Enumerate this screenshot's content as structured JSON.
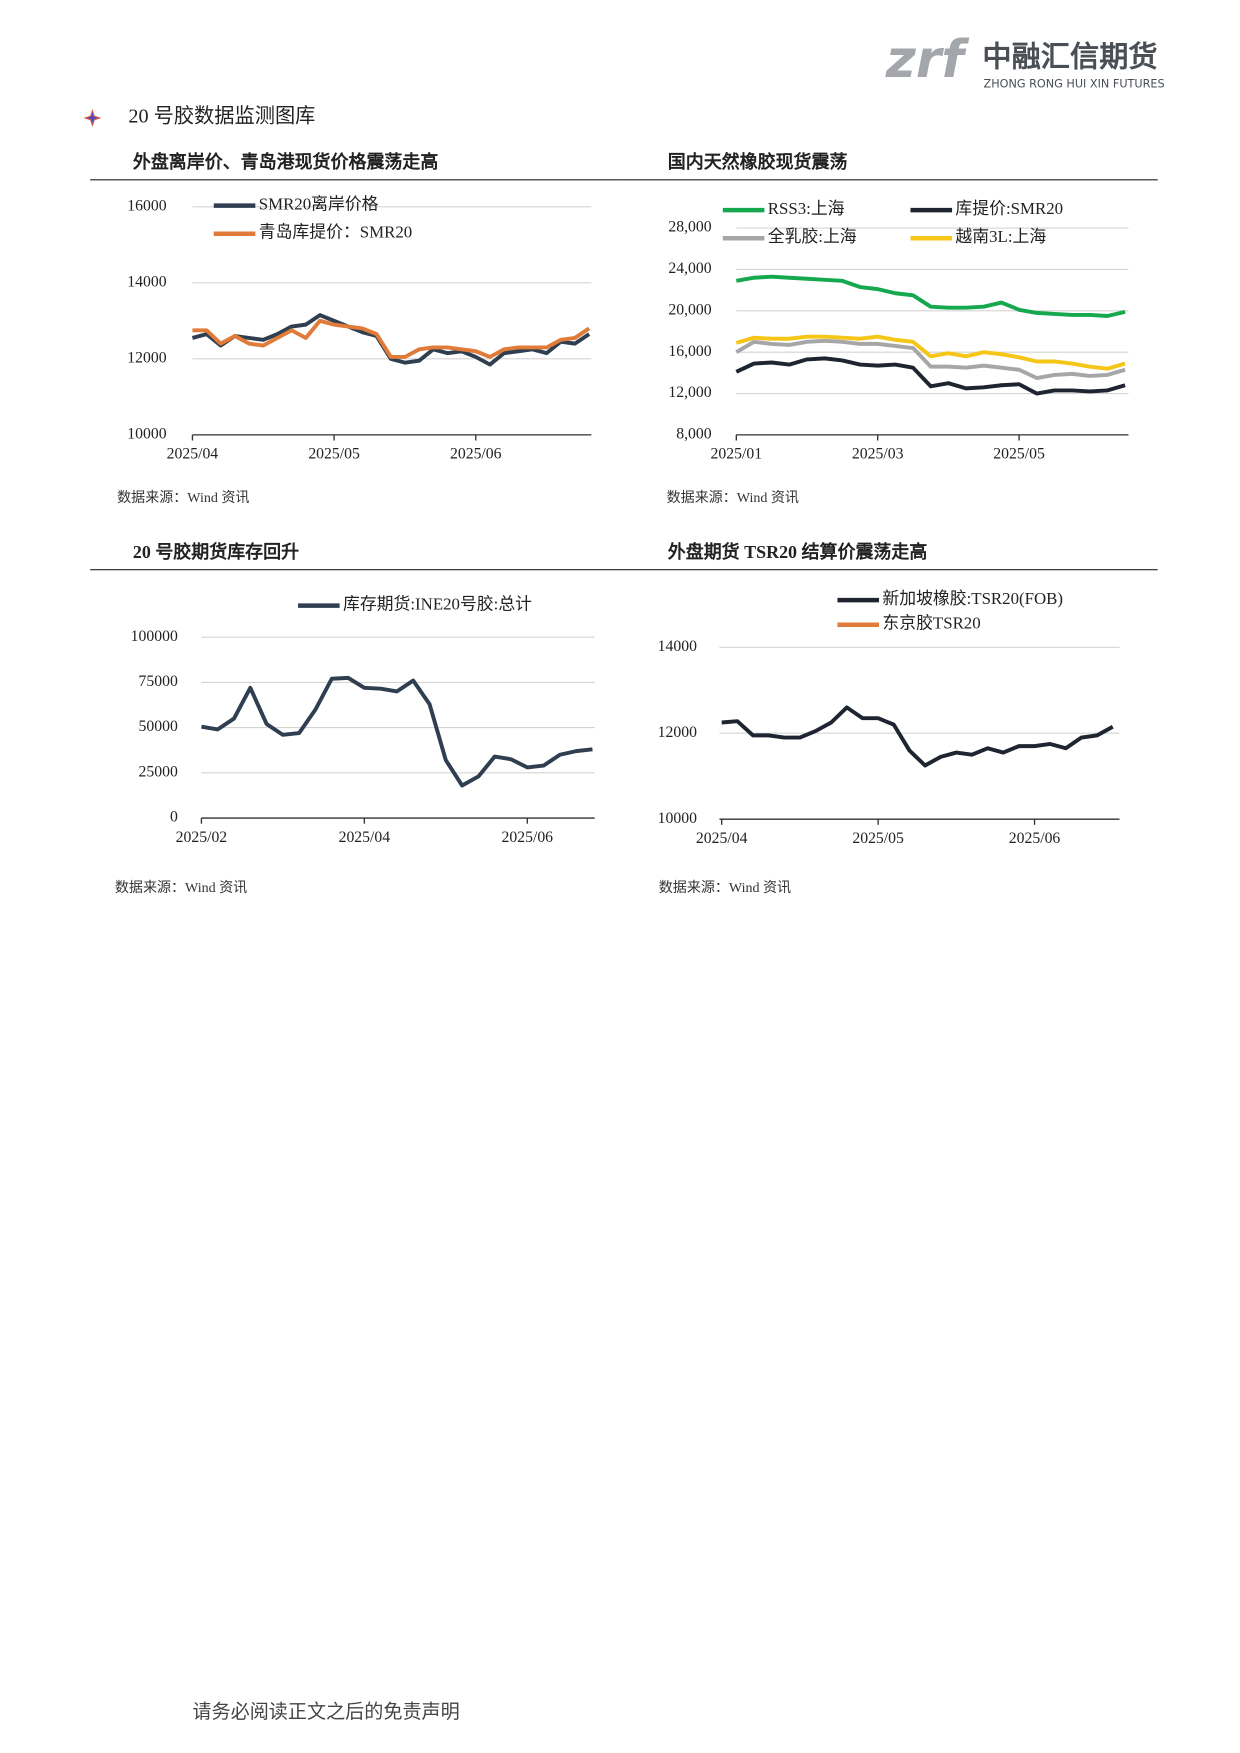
{
  "header": {
    "logo": "zrf",
    "company": "中融汇信期货",
    "company_en": "ZHONG RONG HUI XIN FUTURES"
  },
  "section_title": "20 号胶数据监测图库",
  "chart_data": [
    {
      "type": "line",
      "title": "外盘离岸价、青岛港现货价格震荡走高",
      "source": "数据来源：Wind 资讯",
      "grid": true,
      "categories": [
        "2025/04",
        null,
        null,
        null,
        null,
        null,
        null,
        null,
        null,
        null,
        "2025/05",
        null,
        null,
        null,
        null,
        null,
        null,
        null,
        null,
        null,
        "2025/06",
        null,
        null,
        null,
        null,
        null,
        null,
        null,
        null
      ],
      "ylim": [
        10000,
        16000
      ],
      "yticks": [
        10000,
        12000,
        14000,
        16000
      ],
      "series": [
        {
          "name": "SMR20离岸价格",
          "color": "#2f3e50",
          "values": [
            12550,
            12650,
            12350,
            12600,
            12550,
            12500,
            12650,
            12850,
            12900,
            13150,
            13000,
            12850,
            12700,
            12600,
            12000,
            11900,
            11950,
            12250,
            12150,
            12200,
            12050,
            11850,
            12150,
            12200,
            12250,
            12150,
            12450,
            12400,
            12650
          ]
        },
        {
          "name": "青岛库提价：SMR20",
          "color": "#e07b39",
          "values": [
            12750,
            12750,
            12400,
            12600,
            12400,
            12350,
            12550,
            12750,
            12550,
            13000,
            12900,
            12850,
            12800,
            12650,
            12050,
            12050,
            12250,
            12300,
            12300,
            12250,
            12200,
            12050,
            12250,
            12300,
            12300,
            12300,
            12500,
            12550,
            12800
          ]
        }
      ]
    },
    {
      "type": "line",
      "title": "国内天然橡胶现货震荡",
      "source": "数据来源：Wind 资讯",
      "grid": true,
      "categories": [
        "2025/01",
        null,
        null,
        null,
        null,
        null,
        null,
        null,
        "2025/03",
        null,
        null,
        null,
        null,
        null,
        null,
        null,
        "2025/05",
        null,
        null,
        null,
        null,
        null,
        null
      ],
      "ylim": [
        8000,
        28000
      ],
      "yticks": [
        {
          "value": 8000,
          "label": "8,000"
        },
        {
          "value": 12000,
          "label": "12,000"
        },
        {
          "value": 16000,
          "label": "16,000"
        },
        {
          "value": 20000,
          "label": "20,000"
        },
        {
          "value": 24000,
          "label": "24,000"
        },
        {
          "value": 28000,
          "label": "28,000"
        }
      ],
      "series": [
        {
          "name": "RSS3:上海",
          "color": "#16a84e",
          "values": [
            22900,
            23200,
            23300,
            23200,
            23100,
            23000,
            22900,
            22300,
            22100,
            21700,
            21500,
            20400,
            20300,
            20300,
            20400,
            20800,
            20100,
            19800,
            19700,
            19600,
            19600,
            19500,
            19900
          ]
        },
        {
          "name": "库提价:SMR20",
          "color": "#1f2530",
          "values": [
            14100,
            14900,
            15000,
            14800,
            15300,
            15400,
            15200,
            14800,
            14700,
            14800,
            14500,
            12700,
            13000,
            12500,
            12600,
            12800,
            12900,
            12000,
            12300,
            12300,
            12200,
            12300,
            12800
          ]
        },
        {
          "name": "全乳胶:上海",
          "color": "#a6a6a6",
          "values": [
            16000,
            17000,
            16800,
            16700,
            17000,
            17100,
            17000,
            16800,
            16800,
            16600,
            16400,
            14600,
            14600,
            14500,
            14700,
            14500,
            14300,
            13500,
            13800,
            13900,
            13700,
            13800,
            14300
          ]
        },
        {
          "name": "越南3L:上海",
          "color": "#f5c518",
          "values": [
            16900,
            17400,
            17300,
            17300,
            17500,
            17500,
            17400,
            17300,
            17500,
            17200,
            17000,
            15600,
            15900,
            15600,
            16000,
            15800,
            15500,
            15100,
            15100,
            14900,
            14600,
            14400,
            14900
          ]
        }
      ]
    },
    {
      "type": "line",
      "title": "20 号胶期货库存回升",
      "source": "数据来源：Wind 资讯",
      "grid": true,
      "categories": [
        "2025/02",
        null,
        null,
        null,
        null,
        null,
        null,
        null,
        null,
        null,
        "2025/04",
        null,
        null,
        null,
        null,
        null,
        null,
        null,
        null,
        null,
        "2025/06",
        null,
        null,
        null,
        null
      ],
      "ylim": [
        0,
        100000
      ],
      "yticks": [
        0,
        25000,
        50000,
        75000,
        100000
      ],
      "series": [
        {
          "name": "库存期货:INE20号胶:总计",
          "color": "#2f3e50",
          "values": [
            50500,
            49000,
            55000,
            72000,
            52000,
            46000,
            47000,
            60000,
            77000,
            77500,
            72000,
            71500,
            70000,
            76000,
            63000,
            32000,
            18000,
            23000,
            34000,
            32500,
            28000,
            29000,
            35000,
            37000,
            38000
          ]
        }
      ]
    },
    {
      "type": "line",
      "title": "外盘期货 TSR20 结算价震荡走高",
      "source": "数据来源：Wind 资讯",
      "grid": true,
      "categories": [
        "2025/04",
        null,
        null,
        null,
        null,
        null,
        null,
        null,
        null,
        null,
        "2025/05",
        null,
        null,
        null,
        null,
        null,
        null,
        null,
        null,
        null,
        "2025/06",
        null,
        null,
        null,
        null,
        null
      ],
      "ylim": [
        10000,
        14000
      ],
      "yticks": [
        10000,
        12000,
        14000
      ],
      "series": [
        {
          "name": "新加坡橡胶:TSR20(FOB)",
          "color": "#1f2530",
          "values": [
            12250,
            12280,
            11950,
            11950,
            11900,
            11900,
            12050,
            12250,
            12600,
            12350,
            12350,
            12200,
            11600,
            11250,
            11450,
            11550,
            11500,
            11650,
            11550,
            11700,
            11700,
            11750,
            11650,
            11900,
            11950,
            12150
          ]
        },
        {
          "name": "东京胶TSR20",
          "color": "#e07b39",
          "values": [
            null,
            null,
            null,
            null,
            null,
            null,
            null,
            null,
            null,
            null,
            null,
            null,
            null,
            null,
            null,
            null,
            null,
            null,
            null,
            null,
            null,
            null,
            null,
            null,
            null,
            null
          ]
        }
      ]
    }
  ],
  "footer": "请务必阅读正文之后的免责声明"
}
